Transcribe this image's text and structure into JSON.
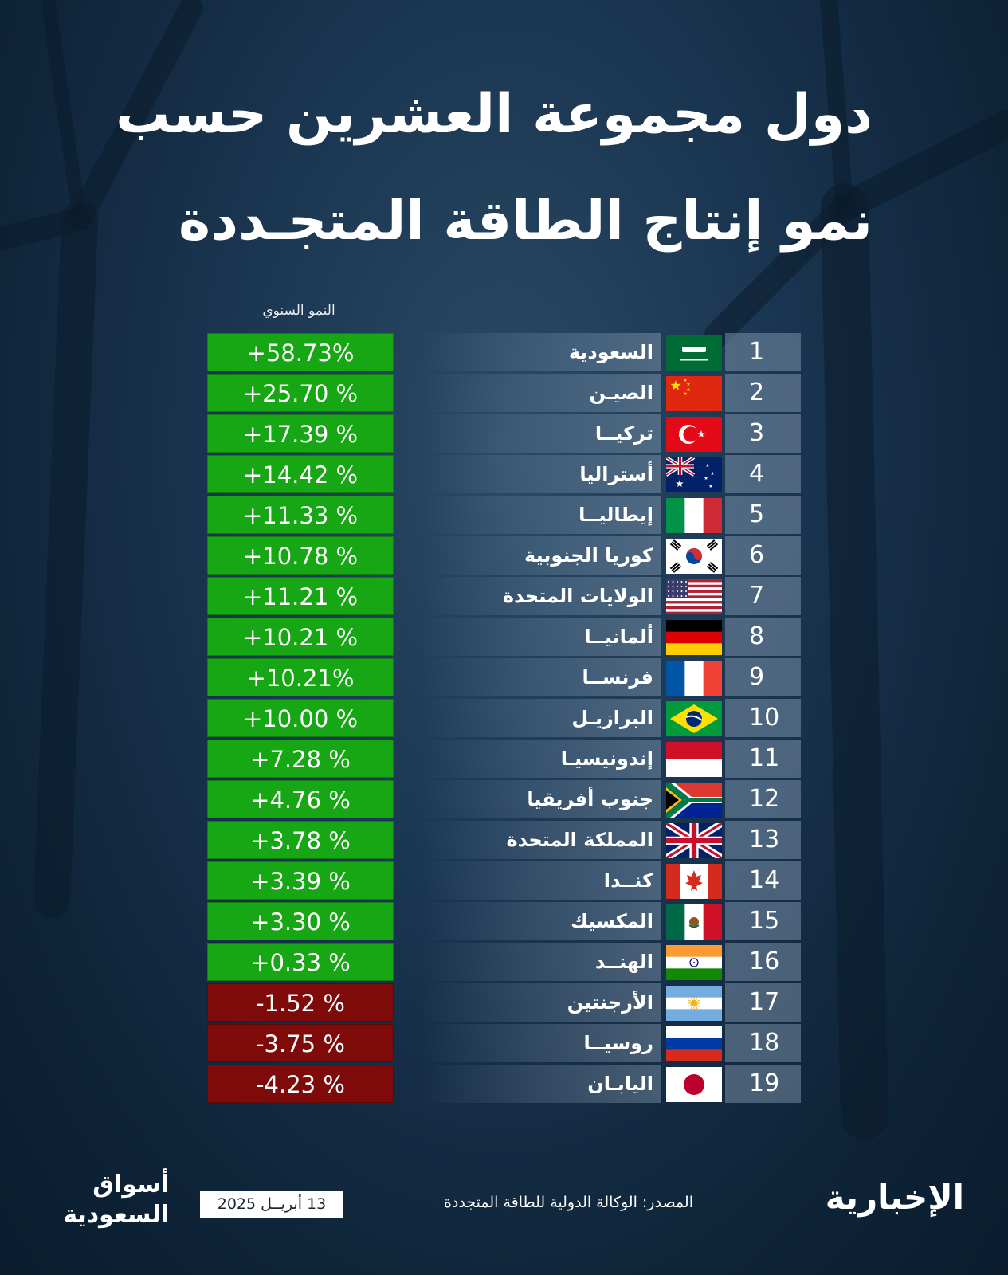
{
  "title": {
    "line1": "دول مجموعة العشرين حسب",
    "line2": "نمو إنتاج الطاقة المتجـددة"
  },
  "chart_data": {
    "type": "table",
    "column_header": "النمو السنوي",
    "rows": [
      {
        "rank": "1",
        "country": "السعودية",
        "flag": "saudi-arabia",
        "value_text": "+58.73%",
        "value": 58.73
      },
      {
        "rank": "2",
        "country": "الصيـن",
        "flag": "china",
        "value_text": "+25.70 %",
        "value": 25.7
      },
      {
        "rank": "3",
        "country": "تركيــا",
        "flag": "turkey",
        "value_text": "+17.39 %",
        "value": 17.39
      },
      {
        "rank": "4",
        "country": "أستراليا",
        "flag": "australia",
        "value_text": "+14.42 %",
        "value": 14.42
      },
      {
        "rank": "5",
        "country": "إيطاليــا",
        "flag": "italy",
        "value_text": "+11.33 %",
        "value": 11.33
      },
      {
        "rank": "6",
        "country": "كوريا الجنوبية",
        "flag": "south-korea",
        "value_text": "+10.78 %",
        "value": 10.78
      },
      {
        "rank": "7",
        "country": "الولايات المتحدة",
        "flag": "united-states",
        "value_text": "+11.21 %",
        "value": 11.21
      },
      {
        "rank": "8",
        "country": "ألمانيــا",
        "flag": "germany",
        "value_text": "+10.21 %",
        "value": 10.21
      },
      {
        "rank": "9",
        "country": "فرنســا",
        "flag": "france",
        "value_text": "+10.21%",
        "value": 10.21
      },
      {
        "rank": "10",
        "country": "البرازيـل",
        "flag": "brazil",
        "value_text": "+10.00 %",
        "value": 10.0
      },
      {
        "rank": "11",
        "country": "إندونيسيـا",
        "flag": "indonesia",
        "value_text": "+7.28 %",
        "value": 7.28
      },
      {
        "rank": "12",
        "country": "جنوب أفريقيا",
        "flag": "south-africa",
        "value_text": "+4.76 %",
        "value": 4.76
      },
      {
        "rank": "13",
        "country": "المملكة المتحدة",
        "flag": "united-kingdom",
        "value_text": "+3.78 %",
        "value": 3.78
      },
      {
        "rank": "14",
        "country": "كنــدا",
        "flag": "canada",
        "value_text": "+3.39 %",
        "value": 3.39
      },
      {
        "rank": "15",
        "country": "المكسيك",
        "flag": "mexico",
        "value_text": "+3.30 %",
        "value": 3.3
      },
      {
        "rank": "16",
        "country": "الهنــد",
        "flag": "india",
        "value_text": "+0.33 %",
        "value": 0.33
      },
      {
        "rank": "17",
        "country": "الأرجنتين",
        "flag": "argentina",
        "value_text": "-1.52 %",
        "value": -1.52
      },
      {
        "rank": "18",
        "country": "روسيــا",
        "flag": "russia",
        "value_text": "-3.75 %",
        "value": -3.75
      },
      {
        "rank": "19",
        "country": "اليابـان",
        "flag": "japan",
        "value_text": "-4.23 %",
        "value": -4.23
      }
    ],
    "colors": {
      "positive": "#17a614",
      "negative": "#7e0a0a"
    }
  },
  "footer": {
    "source": "المصدر: الوكالة الدولية للطاقة المتجددة",
    "date": "13 أبريــل 2025",
    "logo_left_line1": "أسواق",
    "logo_left_line2": "السعودية",
    "logo_right": "الإخبارية"
  }
}
